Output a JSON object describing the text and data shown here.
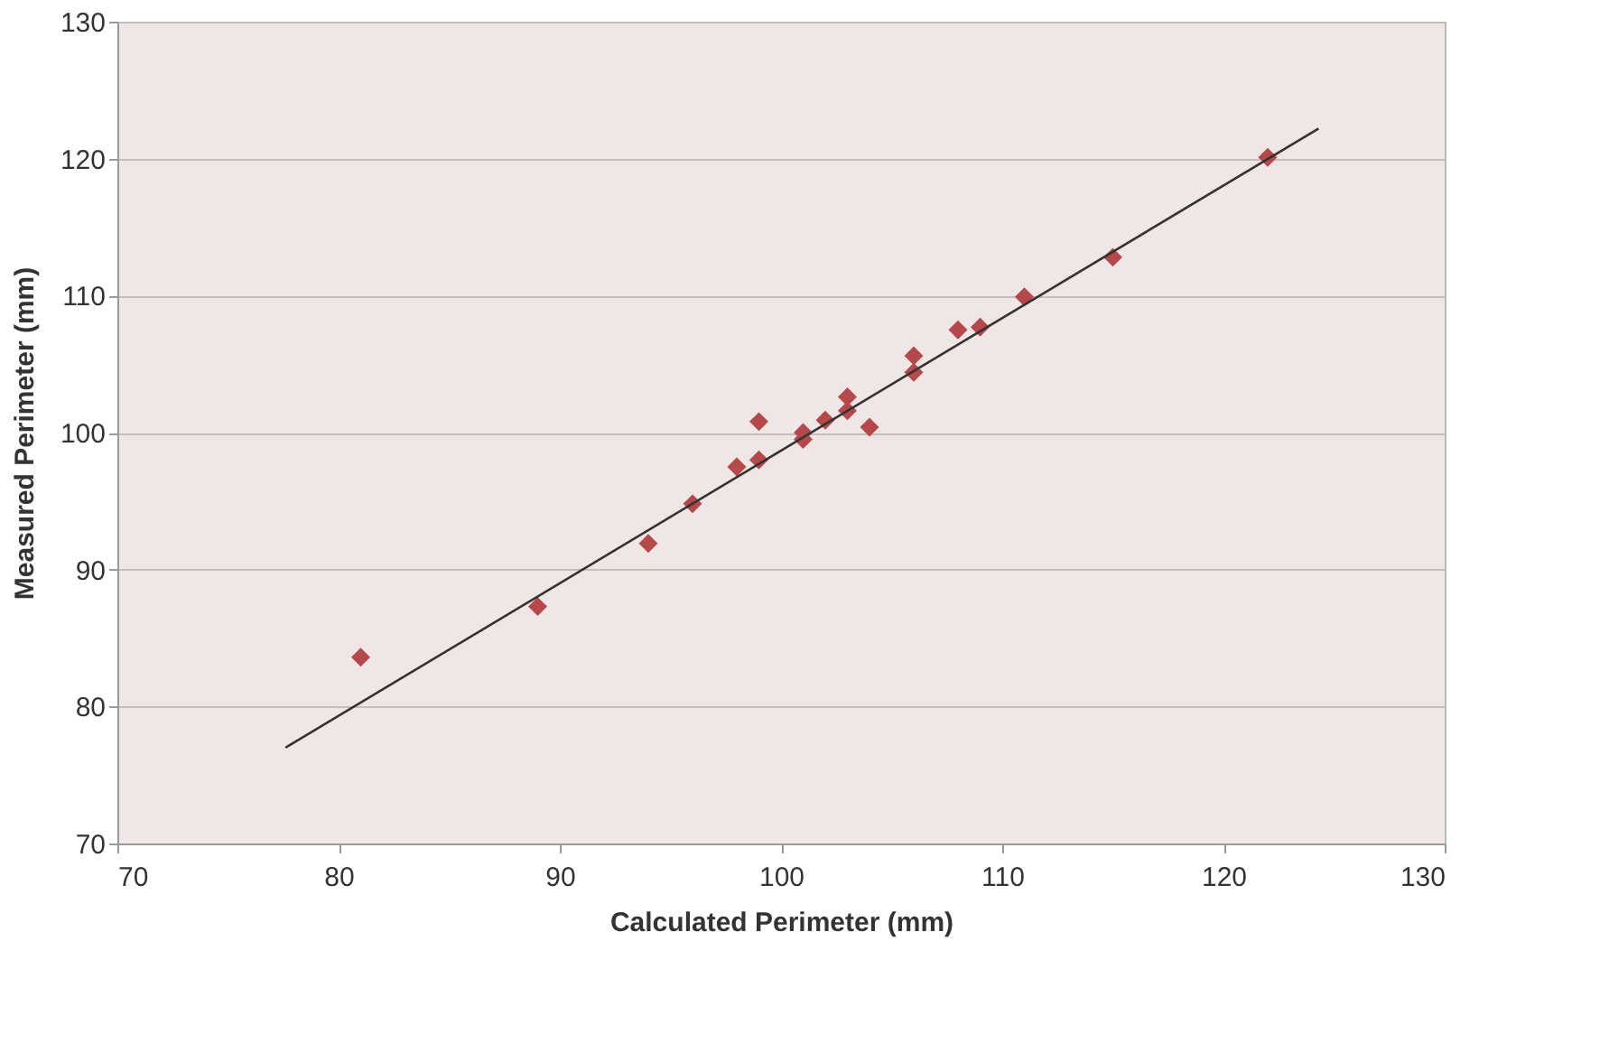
{
  "chart_data": {
    "type": "scatter",
    "xlabel": "Calculated Perimeter (mm)",
    "ylabel": "Measured Perimeter (mm)",
    "xlim": [
      70,
      130
    ],
    "xticks": [
      70,
      80,
      90,
      100,
      110,
      120,
      130
    ],
    "ylim": [
      70,
      130
    ],
    "yticks": [
      70,
      80,
      90,
      100,
      110,
      120,
      130
    ],
    "grid": "y",
    "series": [
      {
        "color": "#b5484a",
        "marker": "diamond",
        "x": [
          81,
          89,
          94,
          96,
          98,
          99,
          99,
          101,
          101,
          102,
          103,
          103,
          104,
          106,
          106,
          108,
          109,
          111,
          115,
          122
        ],
        "values": [
          83.6,
          87.3,
          91.9,
          94.8,
          97.5,
          100.8,
          98.0,
          99.5,
          100.0,
          100.9,
          102.6,
          101.6,
          100.4,
          104.4,
          105.6,
          107.5,
          107.7,
          109.9,
          112.8,
          120.1
        ]
      },
      {
        "type": "line",
        "color": "#333333",
        "marker": "none",
        "line_style": "solid",
        "x": [
          77.6,
          124.3
        ],
        "values": [
          77.0,
          122.2
        ]
      }
    ]
  }
}
